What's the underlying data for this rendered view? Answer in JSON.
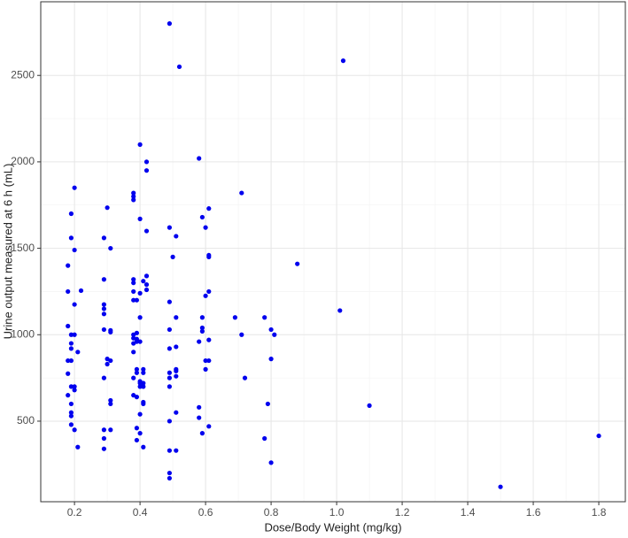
{
  "chart_data": {
    "type": "scatter",
    "x_label": "Dose/Body Weight (mg/kg)",
    "y_label": "Urine output measured at 6 h (mL)",
    "xlim": [
      0.097,
      1.881
    ],
    "ylim": [
      34,
      2926
    ],
    "xticks": [
      0.2,
      0.4,
      0.6,
      0.8,
      {
        "value": 1,
        "label": "1.0"
      },
      1.2,
      1.4,
      1.6,
      1.8
    ],
    "yticks": [
      500,
      1000,
      1500,
      2000,
      2500
    ],
    "grid": true,
    "series": [
      {
        "color": "#0000ee",
        "x": [
          0.18,
          0.18,
          0.18,
          0.18,
          0.18,
          0.18,
          0.19,
          0.19,
          0.19,
          0.19,
          0.19,
          0.19,
          0.19,
          0.19,
          0.19,
          0.19,
          0.19,
          0.2,
          0.2,
          0.2,
          0.2,
          0.2,
          0.2,
          0.2,
          0.21,
          0.21,
          0.22,
          0.29,
          0.29,
          0.29,
          0.29,
          0.29,
          0.29,
          0.29,
          0.29,
          0.29,
          0.29,
          0.3,
          0.3,
          0.3,
          0.31,
          0.31,
          0.31,
          0.31,
          0.31,
          0.31,
          0.31,
          0.38,
          0.38,
          0.38,
          0.38,
          0.38,
          0.38,
          0.38,
          0.38,
          0.38,
          0.38,
          0.38,
          0.38,
          0.38,
          0.39,
          0.39,
          0.39,
          0.39,
          0.39,
          0.39,
          0.39,
          0.39,
          0.39,
          0.4,
          0.4,
          0.4,
          0.4,
          0.4,
          0.4,
          0.4,
          0.4,
          0.4,
          0.4,
          0.41,
          0.41,
          0.41,
          0.41,
          0.41,
          0.41,
          0.41,
          0.41,
          0.42,
          0.42,
          0.42,
          0.42,
          0.42,
          0.42,
          0.49,
          0.49,
          0.49,
          0.49,
          0.49,
          0.49,
          0.49,
          0.49,
          0.49,
          0.49,
          0.49,
          0.49,
          0.5,
          0.51,
          0.51,
          0.51,
          0.51,
          0.51,
          0.51,
          0.51,
          0.51,
          0.52,
          0.58,
          0.58,
          0.58,
          0.58,
          0.59,
          0.59,
          0.59,
          0.59,
          0.59,
          0.6,
          0.6,
          0.6,
          0.6,
          0.61,
          0.61,
          0.61,
          0.61,
          0.61,
          0.61,
          0.61,
          0.69,
          0.71,
          0.71,
          0.72,
          0.78,
          0.78,
          0.79,
          0.8,
          0.8,
          0.8,
          0.81,
          0.88,
          1.01,
          1.02,
          1.1,
          1.5,
          1.8
        ],
        "values": [
          1250,
          1400,
          1050,
          850,
          650,
          775,
          1700,
          1560,
          1000,
          950,
          920,
          850,
          700,
          600,
          550,
          530,
          480,
          1850,
          1490,
          1175,
          1000,
          700,
          680,
          450,
          900,
          350,
          1255,
          1560,
          1320,
          1175,
          1150,
          1120,
          1030,
          750,
          450,
          400,
          340,
          1735,
          860,
          830,
          1500,
          1025,
          1015,
          850,
          620,
          600,
          450,
          1820,
          1800,
          1780,
          1320,
          1300,
          1250,
          1200,
          1000,
          980,
          950,
          900,
          750,
          650,
          1200,
          1010,
          975,
          960,
          800,
          780,
          640,
          460,
          390,
          2100,
          1670,
          1240,
          1100,
          960,
          730,
          720,
          700,
          540,
          430,
          1310,
          800,
          780,
          720,
          700,
          610,
          600,
          350,
          2000,
          1950,
          1600,
          1340,
          1290,
          1260,
          2800,
          1620,
          1190,
          1030,
          920,
          780,
          750,
          700,
          500,
          330,
          200,
          170,
          1450,
          1570,
          1100,
          930,
          800,
          790,
          760,
          550,
          330,
          2550,
          2020,
          960,
          580,
          520,
          1680,
          1100,
          1040,
          1020,
          430,
          1225,
          850,
          800,
          1620,
          1730,
          1460,
          1450,
          1250,
          970,
          850,
          470,
          1100,
          1820,
          1000,
          750,
          1100,
          400,
          600,
          1030,
          860,
          260,
          1000,
          1410,
          1140,
          2585,
          590,
          120,
          415
        ]
      }
    ]
  }
}
